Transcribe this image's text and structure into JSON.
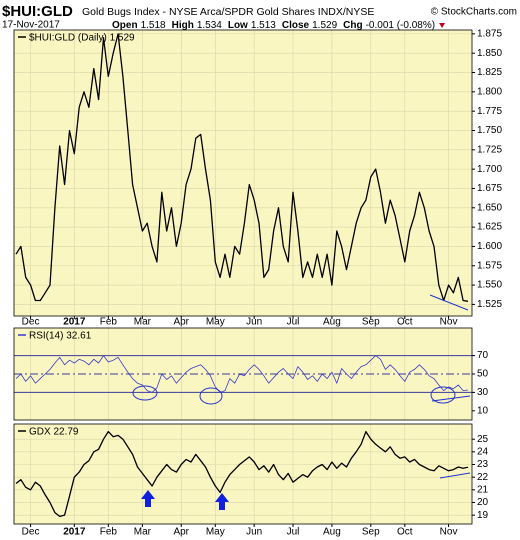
{
  "header": {
    "symbol": "$HUI:GLD",
    "description": "Gold Bugs Index - NYSE Arca/SPDR Gold Shares INDX/NYSE",
    "copyright": "© StockCharts.com",
    "date": "17-Nov-2017",
    "quote": [
      {
        "label": "Open",
        "value": "1.518"
      },
      {
        "label": "High",
        "value": "1.534"
      },
      {
        "label": "Low",
        "value": "1.513"
      },
      {
        "label": "Close",
        "value": "1.529"
      },
      {
        "label": "Chg",
        "value": "-0.001 (-0.08%)"
      }
    ]
  },
  "chart_data": [
    {
      "type": "line",
      "title": "$HUI:GLD (Daily) 1.529",
      "categories": [
        null,
        null,
        null,
        "Dec",
        null,
        null,
        null,
        null,
        null,
        null,
        null,
        null,
        "2017",
        null,
        null,
        null,
        null,
        null,
        null,
        "Feb",
        null,
        null,
        null,
        null,
        null,
        null,
        "Mar",
        null,
        null,
        null,
        null,
        null,
        null,
        null,
        "Apr",
        null,
        null,
        null,
        null,
        null,
        null,
        "May",
        null,
        null,
        null,
        null,
        null,
        null,
        null,
        "Jun",
        null,
        null,
        null,
        null,
        null,
        null,
        null,
        "Jul",
        null,
        null,
        null,
        null,
        null,
        null,
        null,
        "Aug",
        null,
        null,
        null,
        null,
        null,
        null,
        null,
        "Sep",
        null,
        null,
        null,
        null,
        null,
        null,
        "Oct",
        null,
        null,
        null,
        null,
        null,
        null,
        null,
        null,
        "Nov",
        null,
        null,
        null,
        null
      ],
      "series": [
        {
          "color": "#000000",
          "values": [
            1.59,
            1.6,
            1.56,
            1.55,
            1.53,
            1.53,
            1.54,
            1.55,
            1.65,
            1.73,
            1.68,
            1.75,
            1.72,
            1.78,
            1.8,
            1.78,
            1.83,
            1.79,
            1.87,
            1.82,
            1.85,
            1.875,
            1.82,
            1.75,
            1.68,
            1.65,
            1.62,
            1.63,
            1.6,
            1.58,
            1.67,
            1.62,
            1.65,
            1.6,
            1.63,
            1.68,
            1.7,
            1.74,
            1.745,
            1.7,
            1.66,
            1.58,
            1.56,
            1.59,
            1.56,
            1.6,
            1.59,
            1.63,
            1.68,
            1.66,
            1.63,
            1.56,
            1.57,
            1.62,
            1.65,
            1.6,
            1.58,
            1.67,
            1.62,
            1.56,
            1.58,
            1.56,
            1.59,
            1.56,
            1.59,
            1.55,
            1.62,
            1.6,
            1.57,
            1.6,
            1.63,
            1.65,
            1.66,
            1.69,
            1.7,
            1.67,
            1.63,
            1.66,
            1.64,
            1.61,
            1.58,
            1.62,
            1.64,
            1.67,
            1.65,
            1.62,
            1.6,
            1.55,
            1.53,
            1.55,
            1.54,
            1.56,
            1.53,
            1.529
          ]
        }
      ],
      "ylim": [
        1.51,
        1.88
      ],
      "yticks": [
        1.525,
        {
          "value": 1.55,
          "label": "1.550"
        },
        1.575,
        {
          "value": 1.6,
          "label": "1.600"
        },
        1.625,
        {
          "value": 1.65,
          "label": "1.650"
        },
        1.675,
        {
          "value": 1.7,
          "label": "1.700"
        },
        1.725,
        {
          "value": 1.75,
          "label": "1.750"
        },
        1.775,
        {
          "value": 1.8,
          "label": "1.800"
        },
        1.825,
        {
          "value": 1.85,
          "label": "1.850"
        },
        1.875
      ],
      "grid": true
    },
    {
      "type": "line",
      "title": "RSI(14) 32.61",
      "series": [
        {
          "color": "#3a3acc",
          "values": [
            45,
            50,
            42,
            48,
            40,
            45,
            50,
            55,
            62,
            68,
            60,
            65,
            62,
            66,
            64,
            60,
            66,
            62,
            70,
            63,
            65,
            68,
            60,
            52,
            45,
            40,
            38,
            32,
            30,
            35,
            50,
            44,
            48,
            40,
            46,
            52,
            56,
            58,
            60,
            55,
            48,
            36,
            30,
            32,
            45,
            40,
            50,
            48,
            55,
            60,
            55,
            48,
            40,
            46,
            52,
            56,
            50,
            45,
            58,
            52,
            44,
            48,
            42,
            50,
            45,
            52,
            40,
            56,
            50,
            45,
            52,
            58,
            60,
            65,
            70,
            66,
            55,
            60,
            55,
            48,
            42,
            52,
            55,
            60,
            55,
            48,
            45,
            38,
            32,
            36,
            34,
            38,
            32,
            32.61
          ]
        }
      ],
      "ylim": [
        0,
        100
      ],
      "yticks": [
        10,
        30,
        50,
        70
      ],
      "ref_lines": [
        {
          "value": 70,
          "style": "solid"
        },
        {
          "value": 50,
          "style": "dashdot"
        },
        {
          "value": 30,
          "style": "solid"
        }
      ],
      "grid": false
    },
    {
      "type": "line",
      "title": "GDX 22.79",
      "categories": [
        null,
        null,
        null,
        "Dec",
        null,
        null,
        null,
        null,
        null,
        null,
        null,
        null,
        "2017",
        null,
        null,
        null,
        null,
        null,
        null,
        "Feb",
        null,
        null,
        null,
        null,
        null,
        null,
        "Mar",
        null,
        null,
        null,
        null,
        null,
        null,
        null,
        "Apr",
        null,
        null,
        null,
        null,
        null,
        null,
        "May",
        null,
        null,
        null,
        null,
        null,
        null,
        null,
        "Jun",
        null,
        null,
        null,
        null,
        null,
        null,
        null,
        "Jul",
        null,
        null,
        null,
        null,
        null,
        null,
        null,
        "Aug",
        null,
        null,
        null,
        null,
        null,
        null,
        null,
        "Sep",
        null,
        null,
        null,
        null,
        null,
        null,
        "Oct",
        null,
        null,
        null,
        null,
        null,
        null,
        null,
        null,
        "Nov",
        null,
        null,
        null,
        null
      ],
      "series": [
        {
          "color": "#000000",
          "values": [
            21.5,
            21.8,
            21.2,
            21.0,
            21.6,
            21.3,
            20.6,
            20.0,
            19.2,
            18.9,
            19.0,
            20.5,
            22.0,
            22.4,
            23.0,
            23.3,
            24.0,
            24.2,
            25.0,
            25.6,
            25.2,
            25.3,
            25.0,
            24.4,
            23.8,
            22.8,
            22.3,
            21.8,
            21.3,
            22.0,
            22.5,
            23.0,
            22.6,
            22.4,
            23.0,
            23.4,
            23.2,
            23.8,
            23.3,
            22.8,
            22.0,
            21.3,
            20.8,
            21.6,
            22.2,
            22.6,
            23.0,
            23.3,
            23.6,
            23.2,
            22.6,
            22.9,
            22.4,
            23.0,
            22.2,
            21.8,
            22.3,
            21.6,
            21.9,
            22.2,
            22.0,
            22.5,
            22.8,
            23.0,
            22.6,
            23.2,
            22.7,
            23.1,
            22.8,
            23.5,
            24.0,
            24.6,
            25.6,
            25.0,
            24.6,
            24.3,
            24.0,
            24.4,
            23.8,
            23.5,
            23.6,
            23.2,
            23.4,
            23.0,
            22.8,
            22.6,
            22.5,
            22.9,
            22.7,
            22.5,
            22.6,
            22.8,
            22.7,
            22.79
          ]
        }
      ],
      "ylim": [
        18.3,
        26.2
      ],
      "yticks": [
        19,
        20,
        21,
        22,
        23,
        24,
        25
      ],
      "grid": true
    }
  ]
}
